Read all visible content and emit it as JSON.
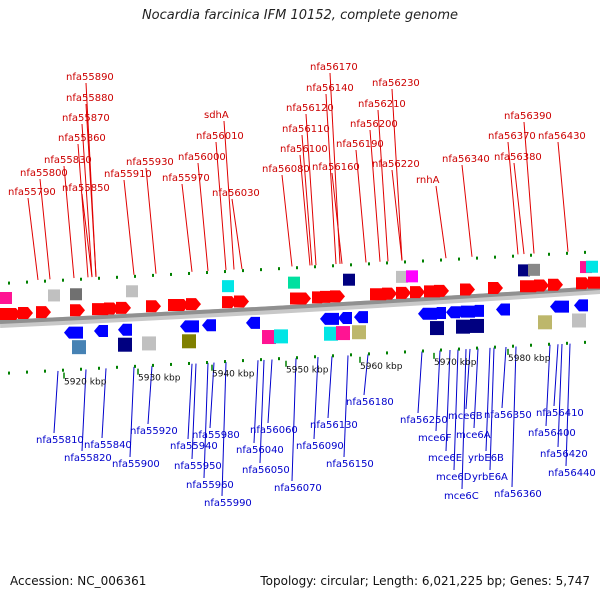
{
  "title": "Nocardia farcinica IFM 10152, complete genome",
  "footer": {
    "accession": "Accession: NC_006361",
    "meta": "Topology: circular; Length: 6,021,225 bp; Genes: 5,747"
  },
  "colors": {
    "forward": "#ff0000",
    "reverse": "#0000ff",
    "backbone": "#909090",
    "tick": "#008000"
  },
  "scale_ticks": [
    "5920 kbp",
    "5930 kbp",
    "5940 kbp",
    "5950 kbp",
    "5960 kbp",
    "5970 kbp",
    "5980 kbp"
  ],
  "forward_genes": [
    "nfa55790",
    "nfa55800",
    "nfa55830",
    "nfa55850",
    "nfa55860",
    "nfa55870",
    "nfa55880",
    "nfa55890",
    "nfa55910",
    "nfa55930",
    "nfa55970",
    "nfa56000",
    "sdhA",
    "nfa56010",
    "nfa56030",
    "nfa56080",
    "nfa56100",
    "nfa56110",
    "nfa56120",
    "nfa56140",
    "nfa56160",
    "nfa56170",
    "nfa56190",
    "nfa56200",
    "nfa56210",
    "nfa56220",
    "nfa56230",
    "rnhA",
    "nfa56340",
    "nfa56370",
    "nfa56380",
    "nfa56390",
    "nfa56430"
  ],
  "reverse_genes": [
    "nfa55810",
    "nfa55820",
    "nfa55840",
    "nfa55900",
    "nfa55920",
    "nfa55940",
    "nfa55950",
    "nfa55960",
    "nfa55980",
    "nfa55990",
    "nfa56040",
    "nfa56050",
    "nfa56060",
    "nfa56070",
    "nfa56090",
    "nfa56130",
    "nfa56150",
    "nfa56180",
    "nfa56250",
    "mce6F",
    "mce6E",
    "mce6D",
    "mce6C",
    "mce6B",
    "mce6A",
    "yrbE6B",
    "yrbE6A",
    "nfa56350",
    "nfa56360",
    "nfa56410",
    "nfa56400",
    "nfa56420",
    "nfa56440"
  ]
}
